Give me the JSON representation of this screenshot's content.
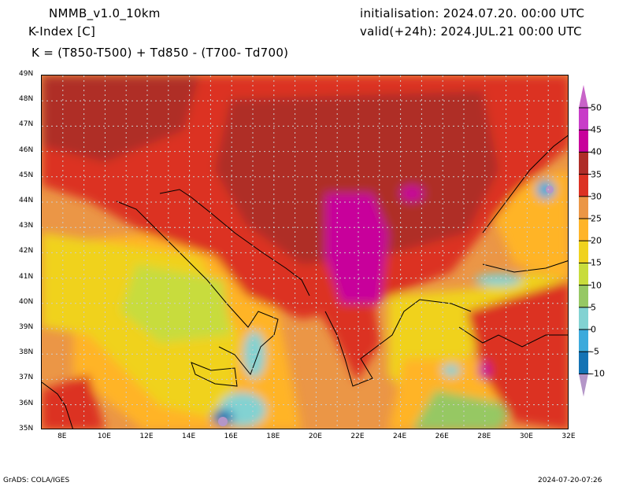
{
  "header": {
    "model": "NMMB_v1.0_10km",
    "variable": "K-Index [C]",
    "formula": "K = (T850-T500) + Td850 - (T700- Td700)",
    "initialisation": "initialisation: 2024.07.20. 00:00 UTC",
    "valid": "valid(+24h): 2024.JUL.21 00:00 UTC"
  },
  "map": {
    "lat_labels": [
      "49N",
      "48N",
      "47N",
      "46N",
      "45N",
      "44N",
      "43N",
      "42N",
      "41N",
      "40N",
      "39N",
      "38N",
      "37N",
      "36N",
      "35N"
    ],
    "lon_labels": [
      "8E",
      "10E",
      "12E",
      "14E",
      "16E",
      "18E",
      "20E",
      "22E",
      "24E",
      "26E",
      "28E",
      "30E",
      "32E"
    ],
    "lat_range": [
      35,
      49
    ],
    "lon_range": [
      7,
      32
    ]
  },
  "colorbar": {
    "labels": [
      "50",
      "45",
      "40",
      "35",
      "30",
      "25",
      "20",
      "15",
      "10",
      "5",
      "0",
      "-5",
      "-10"
    ],
    "colors": [
      "#c864c8",
      "#c83cc8",
      "#c8009b",
      "#af2d28",
      "#dc3223",
      "#eb9646",
      "#ffb428",
      "#f0d21e",
      "#c8dc3c",
      "#96c864",
      "#82d2d2",
      "#3caadc",
      "#1473b4",
      "#b496c8"
    ]
  },
  "footer": {
    "left": "GrADS: COLA/IGES",
    "right": "2024-07-20-07:26"
  }
}
